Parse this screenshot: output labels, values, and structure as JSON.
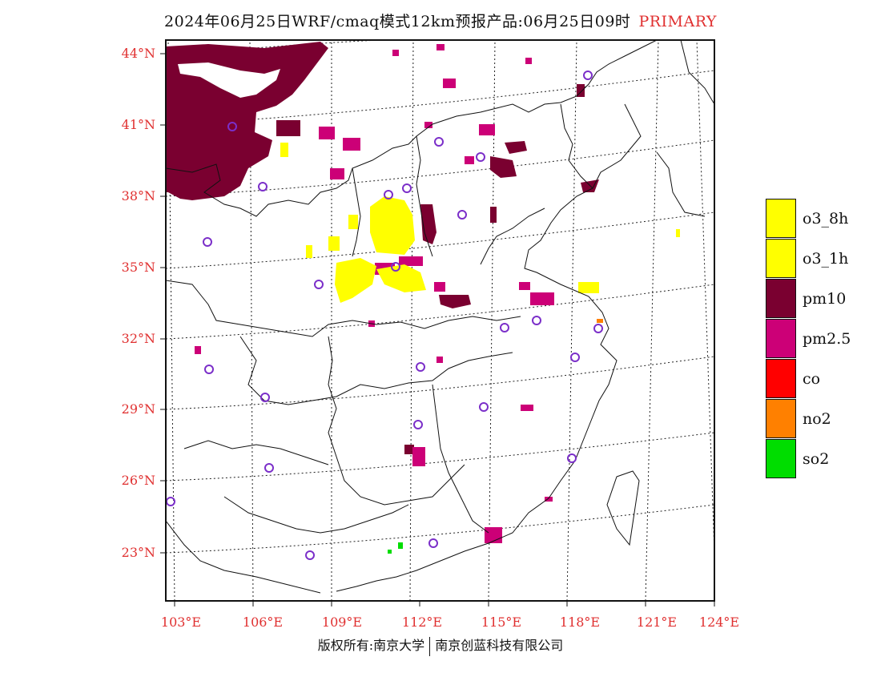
{
  "header": {
    "title": "2024年06月25日WRF/cmaq模式12km预报产品:06月25日09时",
    "tag": "PRIMARY"
  },
  "axes": {
    "lat_ticks": [
      "44°N",
      "41°N",
      "38°N",
      "35°N",
      "32°N",
      "29°N",
      "26°N",
      "23°N"
    ],
    "lon_ticks": [
      "103°E",
      "106°E",
      "109°E",
      "112°E",
      "115°E",
      "118°E",
      "121°E",
      "124°E"
    ]
  },
  "legend": [
    {
      "label": "o3_8h",
      "color": "#ffff00"
    },
    {
      "label": "o3_1h",
      "color": "#ffff00"
    },
    {
      "label": "pm10",
      "color": "#7a0030"
    },
    {
      "label": "pm2.5",
      "color": "#cc0077"
    },
    {
      "label": "co",
      "color": "#ff0000"
    },
    {
      "label": "no2",
      "color": "#ff8000"
    },
    {
      "label": "so2",
      "color": "#00dd00"
    }
  ],
  "footer": {
    "left": "版权所有:南京大学",
    "right": "南京创蓝科技有限公司"
  }
}
